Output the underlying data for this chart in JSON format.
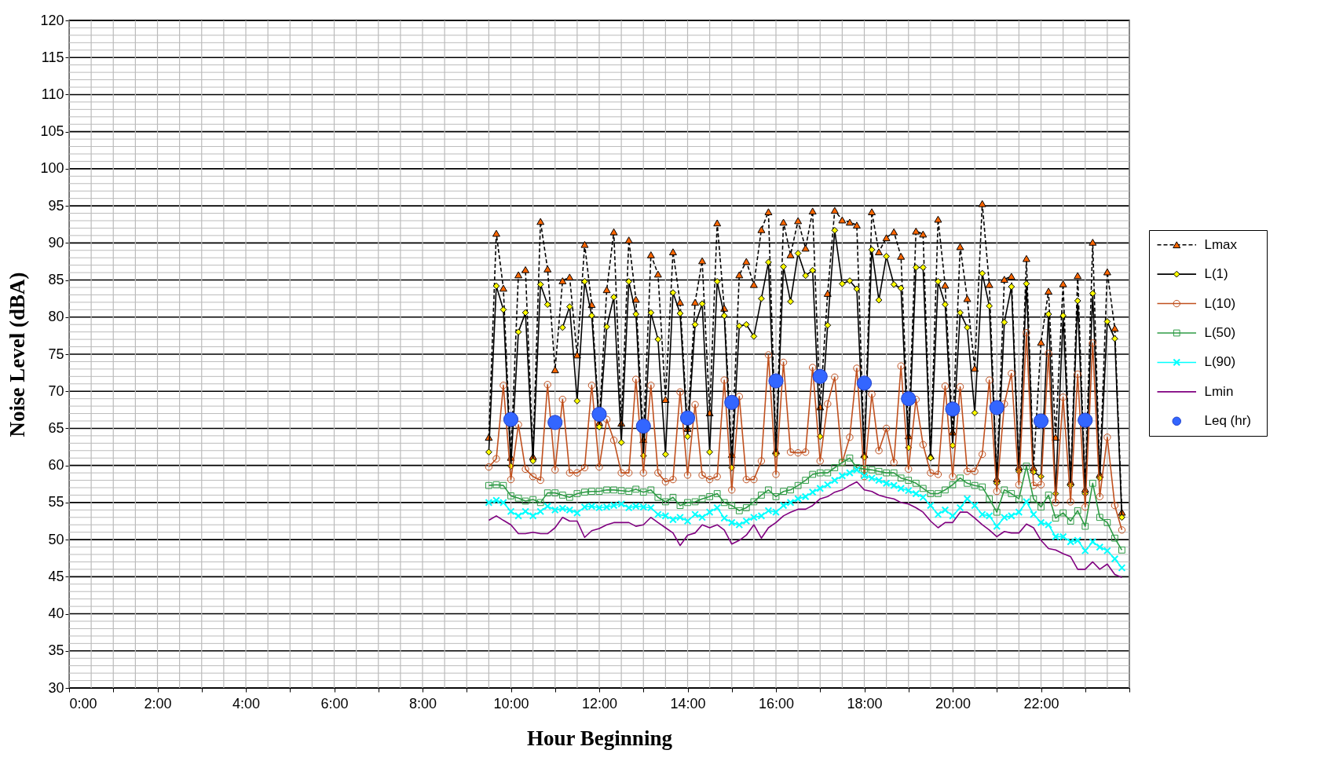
{
  "chart_data": {
    "type": "line",
    "xlabel": "Hour Beginning",
    "ylabel": "Noise Level (dBA)",
    "xlim": [
      0,
      24
    ],
    "ylim": [
      30,
      120
    ],
    "xticks": [
      {
        "value": 0,
        "label": "0:00"
      },
      {
        "value": 0.5,
        "label": null
      },
      {
        "value": 1,
        "label": null
      },
      {
        "value": 1.5,
        "label": null
      },
      {
        "value": 2,
        "label": "2:00"
      },
      {
        "value": 2.5,
        "label": null
      },
      {
        "value": 3,
        "label": null
      },
      {
        "value": 3.5,
        "label": null
      },
      {
        "value": 4,
        "label": "4:00"
      },
      {
        "value": 4.5,
        "label": null
      },
      {
        "value": 5,
        "label": null
      },
      {
        "value": 5.5,
        "label": null
      },
      {
        "value": 6,
        "label": "6:00"
      },
      {
        "value": 6.5,
        "label": null
      },
      {
        "value": 7,
        "label": null
      },
      {
        "value": 7.5,
        "label": null
      },
      {
        "value": 8,
        "label": "8:00"
      },
      {
        "value": 8.5,
        "label": null
      },
      {
        "value": 9,
        "label": null
      },
      {
        "value": 9.5,
        "label": null
      },
      {
        "value": 10,
        "label": "10:00"
      },
      {
        "value": 10.5,
        "label": null
      },
      {
        "value": 11,
        "label": null
      },
      {
        "value": 11.5,
        "label": null
      },
      {
        "value": 12,
        "label": "12:00"
      },
      {
        "value": 12.5,
        "label": null
      },
      {
        "value": 13,
        "label": null
      },
      {
        "value": 13.5,
        "label": null
      },
      {
        "value": 14,
        "label": "14:00"
      },
      {
        "value": 14.5,
        "label": null
      },
      {
        "value": 15,
        "label": null
      },
      {
        "value": 15.5,
        "label": null
      },
      {
        "value": 16,
        "label": "16:00"
      },
      {
        "value": 16.5,
        "label": null
      },
      {
        "value": 17,
        "label": null
      },
      {
        "value": 17.5,
        "label": null
      },
      {
        "value": 18,
        "label": "18:00"
      },
      {
        "value": 18.5,
        "label": null
      },
      {
        "value": 19,
        "label": null
      },
      {
        "value": 19.5,
        "label": null
      },
      {
        "value": 20,
        "label": "20:00"
      },
      {
        "value": 20.5,
        "label": null
      },
      {
        "value": 21,
        "label": null
      },
      {
        "value": 21.5,
        "label": null
      },
      {
        "value": 22,
        "label": "22:00"
      },
      {
        "value": 22.5,
        "label": null
      },
      {
        "value": 23,
        "label": null
      },
      {
        "value": 23.5,
        "label": null
      },
      {
        "value": 24,
        "label": null
      }
    ],
    "yticks": [
      30,
      {
        "value": 31,
        "label": null
      },
      {
        "value": 32,
        "label": null
      },
      {
        "value": 33,
        "label": null
      },
      {
        "value": 34,
        "label": null
      },
      35,
      {
        "value": 36,
        "label": null
      },
      {
        "value": 37,
        "label": null
      },
      {
        "value": 38,
        "label": null
      },
      {
        "value": 39,
        "label": null
      },
      40,
      {
        "value": 41,
        "label": null
      },
      {
        "value": 42,
        "label": null
      },
      {
        "value": 43,
        "label": null
      },
      {
        "value": 44,
        "label": null
      },
      45,
      {
        "value": 46,
        "label": null
      },
      {
        "value": 47,
        "label": null
      },
      {
        "value": 48,
        "label": null
      },
      {
        "value": 49,
        "label": null
      },
      50,
      {
        "value": 51,
        "label": null
      },
      {
        "value": 52,
        "label": null
      },
      {
        "value": 53,
        "label": null
      },
      {
        "value": 54,
        "label": null
      },
      55,
      {
        "value": 56,
        "label": null
      },
      {
        "value": 57,
        "label": null
      },
      {
        "value": 58,
        "label": null
      },
      {
        "value": 59,
        "label": null
      },
      60,
      {
        "value": 61,
        "label": null
      },
      {
        "value": 62,
        "label": null
      },
      {
        "value": 63,
        "label": null
      },
      {
        "value": 64,
        "label": null
      },
      65,
      {
        "value": 66,
        "label": null
      },
      {
        "value": 67,
        "label": null
      },
      {
        "value": 68,
        "label": null
      },
      {
        "value": 69,
        "label": null
      },
      70,
      {
        "value": 71,
        "label": null
      },
      {
        "value": 72,
        "label": null
      },
      {
        "value": 73,
        "label": null
      },
      {
        "value": 74,
        "label": null
      },
      75,
      {
        "value": 76,
        "label": null
      },
      {
        "value": 77,
        "label": null
      },
      {
        "value": 78,
        "label": null
      },
      {
        "value": 79,
        "label": null
      },
      80,
      {
        "value": 81,
        "label": null
      },
      {
        "value": 82,
        "label": null
      },
      {
        "value": 83,
        "label": null
      },
      {
        "value": 84,
        "label": null
      },
      85,
      {
        "value": 86,
        "label": null
      },
      {
        "value": 87,
        "label": null
      },
      {
        "value": 88,
        "label": null
      },
      {
        "value": 89,
        "label": null
      },
      90,
      {
        "value": 91,
        "label": null
      },
      {
        "value": 92,
        "label": null
      },
      {
        "value": 93,
        "label": null
      },
      {
        "value": 94,
        "label": null
      },
      95,
      {
        "value": 96,
        "label": null
      },
      {
        "value": 97,
        "label": null
      },
      {
        "value": 98,
        "label": null
      },
      {
        "value": 99,
        "label": null
      },
      100,
      {
        "value": 101,
        "label": null
      },
      {
        "value": 102,
        "label": null
      },
      {
        "value": 103,
        "label": null
      },
      {
        "value": 104,
        "label": null
      },
      105,
      {
        "value": 106,
        "label": null
      },
      {
        "value": 107,
        "label": null
      },
      {
        "value": 108,
        "label": null
      },
      {
        "value": 109,
        "label": null
      },
      110,
      {
        "value": 111,
        "label": null
      },
      {
        "value": 112,
        "label": null
      },
      {
        "value": 113,
        "label": null
      },
      {
        "value": 114,
        "label": null
      },
      115,
      {
        "value": 116,
        "label": null
      },
      {
        "value": 117,
        "label": null
      },
      {
        "value": 118,
        "label": null
      },
      {
        "value": 119,
        "label": null
      },
      120
    ],
    "grid": true,
    "legend": "right",
    "x": [
      9.5,
      9.67,
      9.83,
      10,
      10.17,
      10.33,
      10.5,
      10.67,
      10.83,
      11,
      11.17,
      11.33,
      11.5,
      11.67,
      11.83,
      12,
      12.17,
      12.33,
      12.5,
      12.67,
      12.83,
      13,
      13.17,
      13.33,
      13.5,
      13.67,
      13.83,
      14,
      14.17,
      14.33,
      14.5,
      14.67,
      14.83,
      15,
      15.17,
      15.33,
      15.5,
      15.67,
      15.83,
      16,
      16.17,
      16.33,
      16.5,
      16.67,
      16.83,
      17,
      17.17,
      17.33,
      17.5,
      17.67,
      17.83,
      18,
      18.17,
      18.33,
      18.5,
      18.67,
      18.83,
      19,
      19.17,
      19.33,
      19.5,
      19.67,
      19.83,
      20,
      20.17,
      20.33,
      20.5,
      20.67,
      20.83,
      21,
      21.17,
      21.33,
      21.5,
      21.67,
      21.83,
      22,
      22.17,
      22.33,
      22.5,
      22.67,
      22.83,
      23,
      23.17,
      23.33,
      23.5,
      23.67,
      23.83
    ],
    "series": [
      {
        "name": "Lmax",
        "color": "#000000",
        "colors": [
          "#ff6600",
          "#ff6600",
          "#ff6600",
          "#ff6600",
          "#ff6600",
          "#ff6600",
          "#ff6600",
          "#ff6600",
          "#ff6600",
          "#ff6600",
          "#ff6600",
          "#ff6600",
          "#ff6600",
          "#ff6600",
          "#ff6600",
          "#ff6600",
          "#ff6600",
          "#ff6600",
          "#ff6600",
          "#ff6600",
          "#ff6600",
          "#ff6600",
          "#ff6600",
          "#ff6600",
          "#ff6600",
          "#ff6600",
          "#ff6600",
          "#ff6600",
          "#ff6600",
          "#ff6600",
          "#ff6600",
          "#ff6600",
          "#ff6600",
          "#ff6600",
          "#ff6600",
          "#ff6600",
          "#ff6600",
          "#ff6600",
          "#ff6600",
          "#ff6600",
          "#ff6600",
          "#ff6600",
          "#ff6600",
          "#ff6600",
          "#ff6600",
          "#ff6600",
          "#ff6600",
          "#ff6600",
          "#ff6600",
          "#ff6600",
          "#ff6600",
          "#ff6600",
          "#ff6600",
          "#ff6600",
          "#ff6600",
          "#ff6600",
          "#ff6600",
          "#ff6600",
          "#ff6600",
          "#ff6600",
          "#ff6600",
          "#ff6600",
          "#ff6600",
          "#ff6600",
          "#ff6600",
          "#ff6600",
          "#ff6600",
          "#ff6600",
          "#ff6600",
          "#ff6600",
          "#ff6600",
          "#ff6600",
          "#ff6600",
          "#ff6600",
          "#ff6600",
          "#ff6600",
          "#ff6600",
          "#ff6600",
          "#ff6600",
          "#ff6600",
          "#ff6600",
          "#ff6600",
          "#ff6600",
          "#ff6600",
          "#ff6600",
          "#ff6600",
          "#ff6600"
        ],
        "marker": "triangle",
        "line_style": "dashed",
        "values": [
          63.8,
          91.3,
          83.9,
          61.1,
          85.7,
          86.4,
          61.2,
          92.9,
          86.5,
          72.9,
          84.9,
          85.4,
          74.9,
          89.8,
          81.7,
          65.8,
          83.7,
          91.5,
          65.7,
          90.4,
          82.4,
          63.5,
          88.4,
          85.8,
          68.9,
          88.8,
          82.0,
          65.0,
          82.0,
          87.6,
          67.1,
          92.7,
          81.2,
          61.5,
          85.7,
          87.5,
          84.4,
          91.8,
          94.2,
          62.0,
          92.8,
          88.4,
          93.0,
          89.3,
          94.3,
          67.9,
          83.2,
          94.4,
          93.1,
          92.8,
          92.4,
          61.5,
          94.2,
          88.8,
          90.7,
          91.5,
          88.2,
          64.0,
          91.6,
          91.2,
          61.3,
          93.2,
          84.3,
          64.5,
          89.5,
          82.5,
          73.1,
          95.3,
          84.4,
          58.2,
          85.1,
          85.5,
          59.8,
          87.9,
          59.7,
          76.6,
          83.5,
          63.8,
          84.5,
          57.8,
          85.6,
          56.8,
          90.1,
          58.8,
          86.1,
          78.5,
          53.7
        ]
      },
      {
        "name": "L(1)",
        "color": "#000000",
        "colors": [
          "#ffff00",
          "#ffff00",
          "#ffff00",
          "#ffff00",
          "#ffff00",
          "#ffff00",
          "#ffff00",
          "#ffff00",
          "#ffff00",
          "#ffff00",
          "#ffff00",
          "#ffff00",
          "#ffff00",
          "#ffff00",
          "#ffff00",
          "#ffff00",
          "#ffff00",
          "#ffff00",
          "#ffff00",
          "#ffff00",
          "#ffff00",
          "#ffff00",
          "#ffff00",
          "#ffff00",
          "#ffff00",
          "#ffff00",
          "#ffff00",
          "#ffff00",
          "#ffff00",
          "#ffff00",
          "#ffff00",
          "#ffff00",
          "#ffff00",
          "#ffff00",
          "#ffff00",
          "#ffff00",
          "#ffff00",
          "#ffff00",
          "#ffff00",
          "#ffff00",
          "#ffff00",
          "#ffff00",
          "#ffff00",
          "#ffff00",
          "#ffff00",
          "#ffff00",
          "#ffff00",
          "#ffff00",
          "#ffff00",
          "#ffff00",
          "#ffff00",
          "#ffff00",
          "#ffff00",
          "#ffff00",
          "#ffff00",
          "#ffff00",
          "#ffff00",
          "#ffff00",
          "#ffff00",
          "#ffff00",
          "#ffff00",
          "#ffff00",
          "#ffff00",
          "#ffff00",
          "#ffff00",
          "#ffff00",
          "#ffff00",
          "#ffff00",
          "#ffff00",
          "#ffff00",
          "#ffff00",
          "#ffff00",
          "#ffff00",
          "#ffff00",
          "#ffff00",
          "#ffff00",
          "#ffff00",
          "#ffff00",
          "#ffff00",
          "#ffff00",
          "#ffff00",
          "#ffff00",
          "#ffff00",
          "#ffff00",
          "#ffff00",
          "#ffff00",
          "#ffff00"
        ],
        "marker": "diamond",
        "line_style": "solid",
        "values": [
          61.8,
          84.2,
          81.0,
          59.9,
          78.0,
          80.6,
          60.6,
          84.4,
          81.7,
          null,
          78.6,
          81.4,
          68.7,
          84.8,
          80.2,
          65.2,
          78.7,
          82.7,
          63.1,
          84.8,
          80.4,
          61.3,
          80.6,
          77.0,
          61.5,
          83.3,
          80.5,
          63.9,
          79.0,
          81.8,
          61.8,
          84.8,
          80.2,
          59.7,
          78.8,
          79.0,
          77.4,
          82.5,
          87.4,
          61.5,
          86.8,
          82.1,
          88.6,
          85.6,
          86.3,
          63.9,
          78.9,
          91.7,
          84.5,
          84.9,
          83.8,
          61.1,
          89.1,
          82.3,
          88.2,
          84.4,
          83.9,
          62.4,
          86.7,
          86.7,
          61.0,
          84.8,
          81.7,
          62.7,
          80.6,
          78.6,
          67.1,
          85.9,
          81.5,
          57.6,
          79.3,
          84.1,
          59.2,
          84.5,
          59.1,
          58.5,
          80.4,
          56.2,
          80.2,
          57.3,
          82.2,
          56.2,
          83.2,
          58.3,
          79.4,
          77.1,
          53.0
        ]
      },
      {
        "name": "L(10)",
        "color": "#c0501e",
        "marker": "circle",
        "line_style": "solid",
        "values": [
          59.8,
          60.9,
          70.8,
          58.1,
          65.5,
          59.5,
          58.5,
          58.0,
          70.9,
          59.4,
          68.9,
          59.0,
          59.0,
          59.7,
          70.8,
          59.8,
          66.2,
          63.4,
          59.0,
          59.0,
          71.6,
          59.0,
          70.8,
          59.0,
          57.8,
          58.1,
          69.9,
          58.7,
          68.2,
          58.7,
          58.1,
          58.5,
          71.5,
          56.7,
          69.3,
          58.1,
          58.1,
          60.6,
          74.9,
          58.8,
          73.9,
          61.8,
          61.7,
          61.8,
          73.2,
          60.6,
          68.3,
          71.9,
          60.4,
          63.8,
          73.1,
          58.5,
          69.6,
          62.0,
          65.0,
          60.4,
          73.4,
          59.5,
          68.9,
          62.8,
          59.0,
          58.8,
          70.7,
          58.5,
          70.6,
          59.2,
          59.2,
          61.5,
          71.5,
          56.5,
          68.3,
          72.4,
          57.4,
          77.9,
          57.3,
          57.4,
          75.1,
          55.0,
          69.2,
          55.1,
          72.3,
          54.4,
          76.5,
          55.8,
          63.8,
          54.6,
          51.3
        ]
      },
      {
        "name": "L(50)",
        "color": "#2e9b45",
        "marker": "square",
        "line_style": "solid",
        "values": [
          57.3,
          57.4,
          57.3,
          55.9,
          55.6,
          55.2,
          55.4,
          55.0,
          56.3,
          56.3,
          56.0,
          55.7,
          56.2,
          56.4,
          56.5,
          56.5,
          56.7,
          56.7,
          56.6,
          56.5,
          56.8,
          56.4,
          56.7,
          55.7,
          55.1,
          55.7,
          54.6,
          55.0,
          55.1,
          55.5,
          55.8,
          56.2,
          55.0,
          54.6,
          53.9,
          54.3,
          55.1,
          56.0,
          56.7,
          55.8,
          56.5,
          56.7,
          57.3,
          58.0,
          58.8,
          59.0,
          59.0,
          59.7,
          60.4,
          61.0,
          59.7,
          59.5,
          59.4,
          59.2,
          59.0,
          59.0,
          58.3,
          58.0,
          57.6,
          56.9,
          56.2,
          56.2,
          56.7,
          57.4,
          58.3,
          57.6,
          57.3,
          57.1,
          55.5,
          53.7,
          56.7,
          56.2,
          55.5,
          59.9,
          55.5,
          54.4,
          56.0,
          52.9,
          53.6,
          52.5,
          53.9,
          51.8,
          57.6,
          53.0,
          52.3,
          50.2,
          48.6
        ]
      },
      {
        "name": "L(90)",
        "color": "#00ffff",
        "marker": "cross",
        "line_style": "solid",
        "values": [
          55.0,
          55.3,
          55.0,
          53.8,
          53.2,
          53.8,
          53.2,
          53.8,
          54.5,
          54.0,
          54.2,
          54.0,
          53.6,
          54.4,
          54.5,
          54.3,
          54.4,
          54.6,
          54.8,
          54.3,
          54.5,
          54.4,
          54.3,
          53.4,
          53.2,
          52.7,
          53.0,
          52.5,
          53.4,
          53.0,
          53.7,
          54.3,
          52.9,
          52.3,
          52.0,
          52.5,
          53.0,
          53.2,
          53.9,
          53.7,
          54.6,
          55.0,
          55.5,
          55.8,
          56.4,
          56.9,
          57.4,
          58.0,
          58.6,
          59.0,
          59.4,
          58.6,
          58.3,
          58.0,
          57.6,
          57.3,
          56.9,
          56.6,
          56.2,
          55.7,
          54.6,
          53.4,
          54.0,
          53.2,
          54.3,
          55.5,
          54.6,
          53.4,
          53.2,
          51.8,
          53.0,
          53.2,
          53.7,
          55.1,
          53.4,
          52.3,
          52.0,
          50.4,
          50.4,
          49.7,
          49.9,
          48.5,
          49.7,
          49.0,
          48.5,
          47.4,
          46.2
        ]
      },
      {
        "name": "Lmin",
        "color": "#800080",
        "marker": "none",
        "line_style": "solid",
        "values": [
          52.6,
          53.2,
          52.6,
          52.0,
          50.8,
          50.8,
          51.0,
          50.8,
          50.8,
          51.6,
          53.0,
          52.5,
          52.5,
          50.3,
          51.2,
          51.5,
          52.0,
          52.3,
          52.3,
          52.3,
          51.8,
          52.0,
          53.0,
          52.3,
          51.6,
          50.9,
          49.2,
          50.6,
          50.9,
          52.0,
          51.6,
          52.0,
          51.3,
          49.4,
          49.9,
          50.6,
          52.0,
          50.2,
          51.6,
          52.3,
          53.2,
          53.7,
          54.1,
          54.1,
          54.6,
          55.5,
          55.8,
          56.4,
          56.7,
          57.3,
          57.8,
          56.7,
          56.5,
          56.0,
          55.7,
          55.5,
          55.0,
          54.8,
          54.3,
          53.7,
          52.5,
          51.6,
          52.3,
          52.3,
          53.7,
          53.7,
          52.9,
          52.0,
          51.3,
          50.4,
          51.1,
          50.9,
          50.9,
          52.1,
          51.6,
          49.9,
          48.8,
          48.6,
          48.1,
          47.7,
          46.0,
          46.0,
          47.0,
          46.0,
          46.7,
          45.3,
          44.9
        ]
      },
      {
        "name": "Leq (hr)",
        "type": "scatter",
        "color": "#3366ff",
        "marker": "circle",
        "x": [
          10,
          11,
          12,
          13,
          14,
          15,
          16,
          17,
          18,
          19,
          20,
          21,
          22,
          23
        ],
        "values": [
          66.2,
          65.8,
          66.9,
          65.3,
          66.4,
          68.5,
          71.4,
          72.0,
          71.1,
          69.0,
          67.6,
          67.8,
          66.0,
          66.1
        ]
      }
    ]
  }
}
